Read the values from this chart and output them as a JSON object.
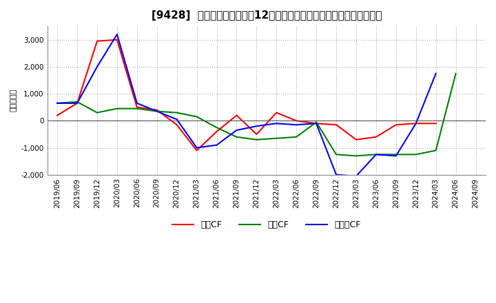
{
  "title": "[9428]  キャッシュフローの12か月移動合計の対前年同期増減額の推移",
  "ylabel": "（百万円）",
  "ylim": [
    -2000,
    3500
  ],
  "yticks": [
    -2000,
    -1000,
    0,
    1000,
    2000,
    3000
  ],
  "x_labels": [
    "2019/06",
    "2019/09",
    "2019/12",
    "2020/03",
    "2020/06",
    "2020/09",
    "2020/12",
    "2021/03",
    "2021/06",
    "2021/09",
    "2021/12",
    "2022/03",
    "2022/06",
    "2022/09",
    "2022/12",
    "2023/03",
    "2023/06",
    "2023/09",
    "2023/12",
    "2024/03",
    "2024/06",
    "2024/09"
  ],
  "operating_cf": [
    200,
    650,
    2950,
    3000,
    500,
    400,
    -150,
    -1100,
    -400,
    200,
    -500,
    300,
    0,
    -100,
    -150,
    -700,
    -600,
    -150,
    -100,
    -100,
    null,
    null
  ],
  "investing_cf": [
    650,
    700,
    300,
    450,
    450,
    350,
    300,
    150,
    -250,
    -600,
    -700,
    -650,
    -600,
    -50,
    -1250,
    -1300,
    -1250,
    -1250,
    -1250,
    -1100,
    1750,
    null
  ],
  "free_cf": [
    650,
    650,
    2000,
    3200,
    650,
    350,
    50,
    -1000,
    -900,
    -350,
    -200,
    -100,
    -150,
    -100,
    -2000,
    -2050,
    -1250,
    -1300,
    -100,
    1750,
    null,
    null
  ],
  "operating_color": "#ff0000",
  "investing_color": "#008000",
  "free_cf_color": "#0000ff",
  "legend_labels": [
    "営業CF",
    "投資CF",
    "フリーCF"
  ],
  "background_color": "#ffffff",
  "grid_color": "#aaaaaa",
  "title_fontsize": 11,
  "tick_fontsize": 7.5,
  "ylabel_fontsize": 8
}
